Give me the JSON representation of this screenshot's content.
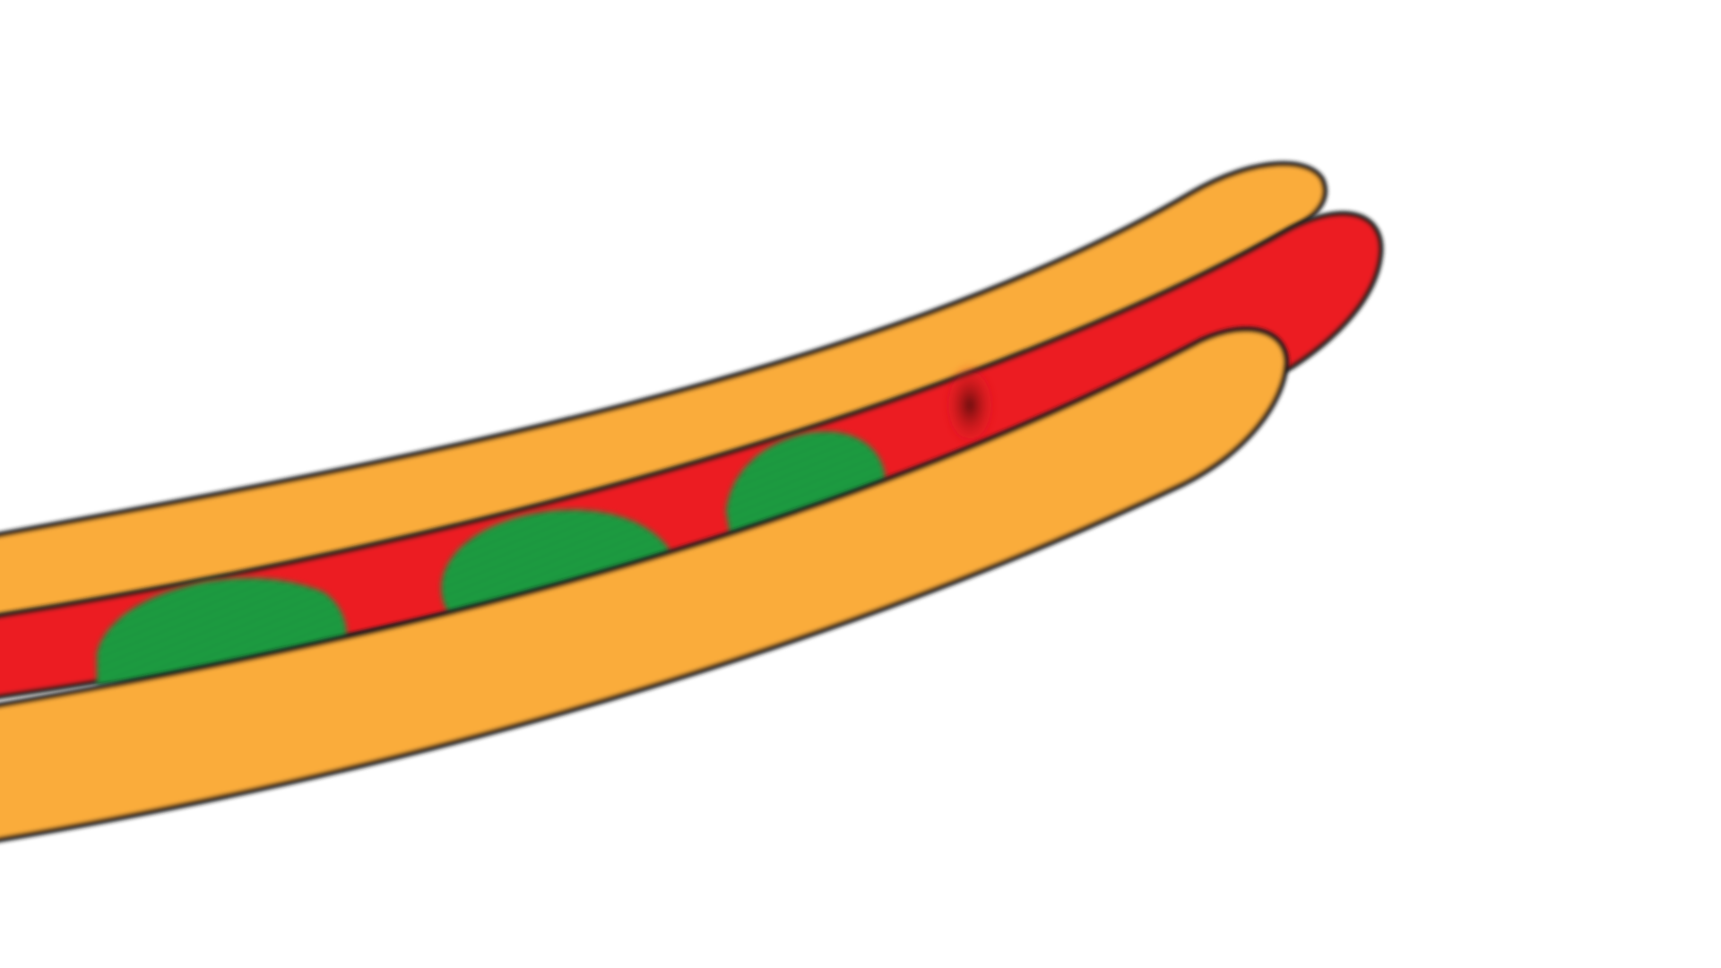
{
  "scene": {
    "subject": "hot-dog-illustration",
    "colors": {
      "background": "#ffffff",
      "bun": "#FAAC3A",
      "sausage": "#EC1D24",
      "sausage_shade": "#7A1014",
      "relish": "#1FA243",
      "relish_stripe": "#17873A",
      "outline": "#1A1A1A"
    }
  }
}
